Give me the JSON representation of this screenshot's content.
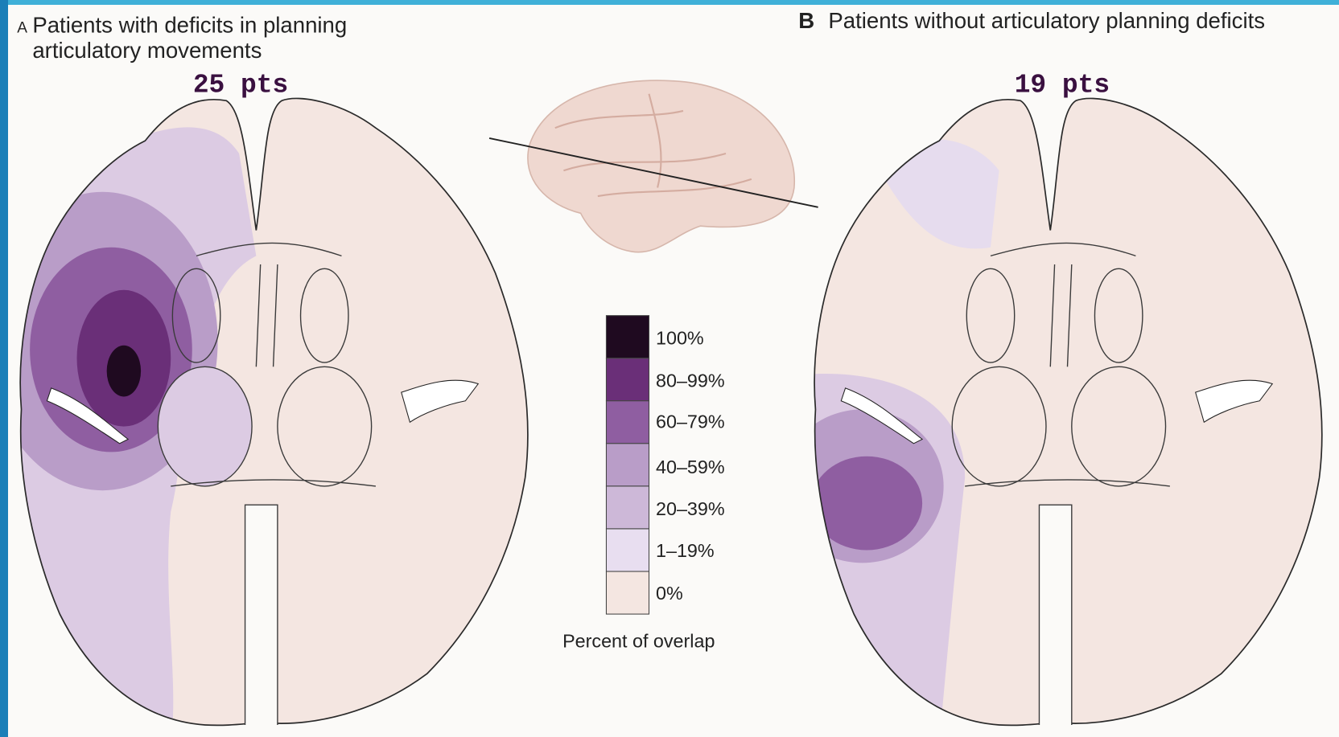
{
  "panel_a": {
    "letter": "A",
    "title_lines": [
      "Patients with deficits in planning",
      "articulatory movements"
    ],
    "count": "25 pts"
  },
  "panel_b": {
    "letter": "B",
    "title": "Patients without articulatory planning deficits",
    "count": "19 pts"
  },
  "legend": {
    "items": [
      "100%",
      "80–99%",
      "60–79%",
      "40–59%",
      "20–39%",
      "1–19%",
      "0%"
    ],
    "title": "Percent of overlap"
  }
}
